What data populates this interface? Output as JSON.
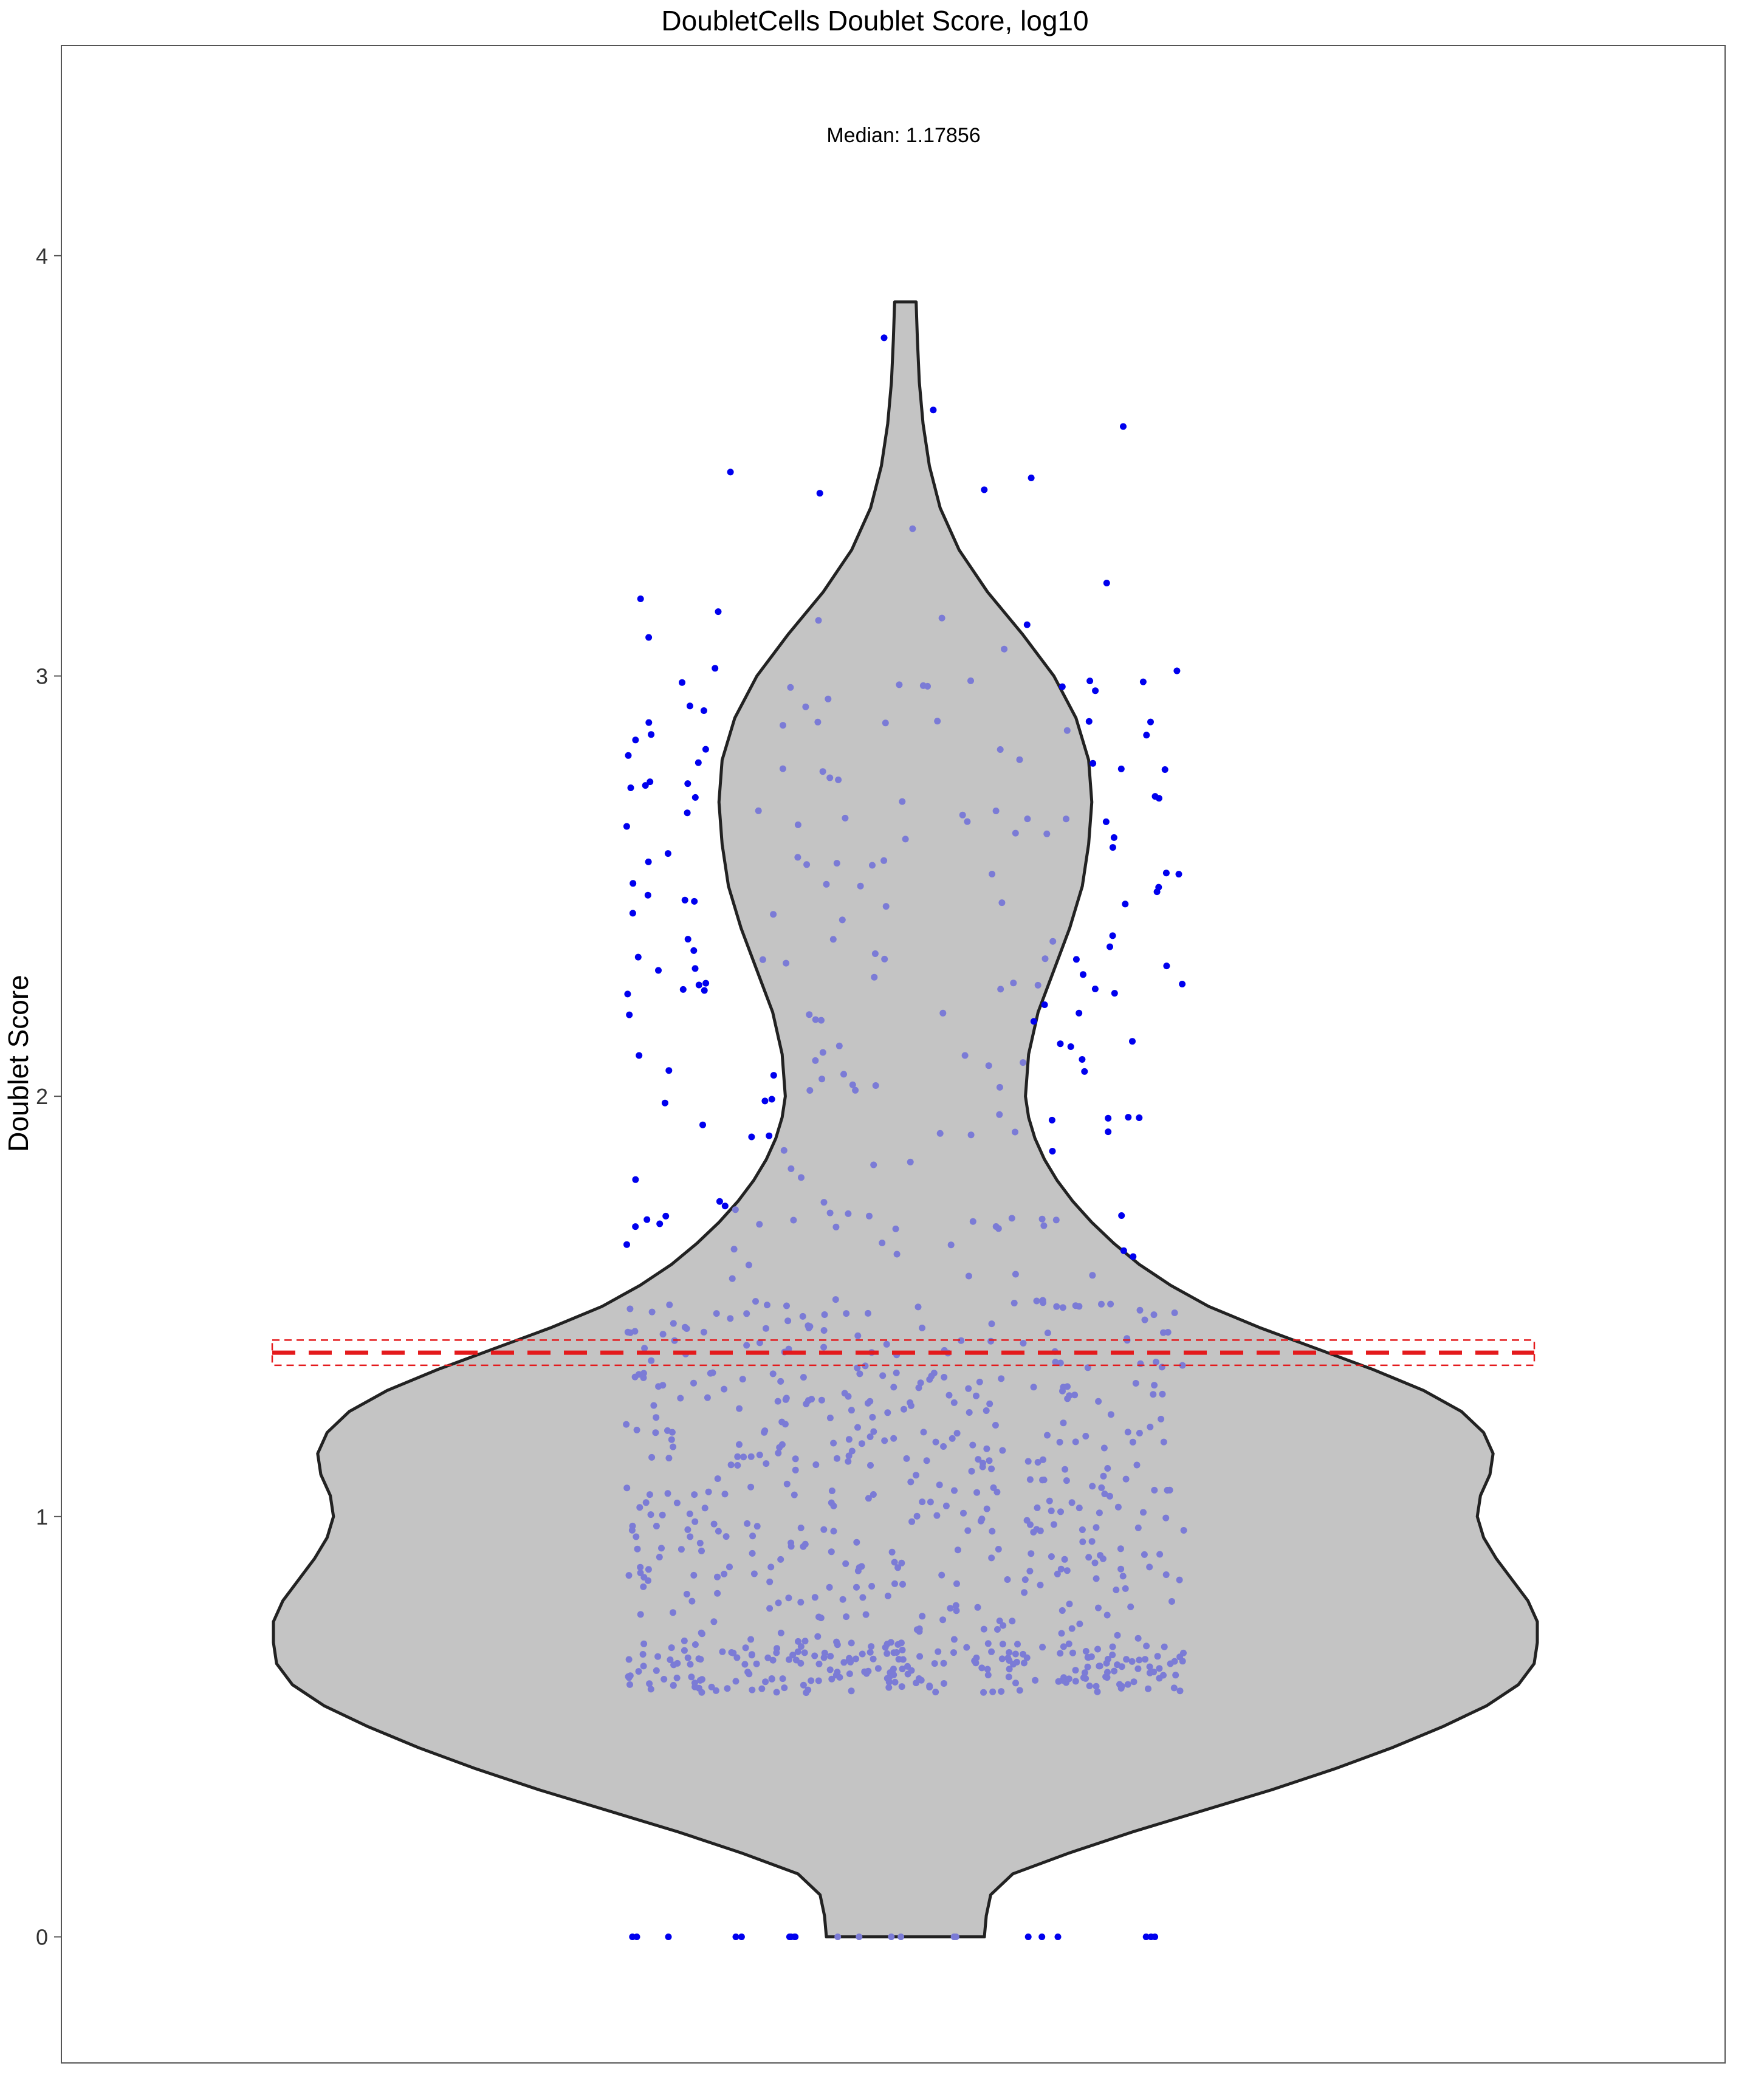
{
  "chart_data": {
    "type": "violin",
    "title": "DoubletCells Doublet Score, log10",
    "annotation": "Median: 1.17856",
    "xlabel": "",
    "ylabel": "Doublet Score",
    "ylim": [
      -0.3,
      4.5
    ],
    "y_ticks": [
      "0",
      "1",
      "2",
      "3",
      "4"
    ],
    "y_tick_values": [
      0,
      1,
      2,
      3,
      4
    ],
    "threshold": {
      "value": 1.39,
      "band": [
        1.36,
        1.42
      ],
      "color": "#e41a1c",
      "style": "dashed"
    },
    "violin": {
      "fill": "#c4c4c4",
      "stroke": "#222222",
      "y_min": 0,
      "y_max": 3.89,
      "profile": [
        [
          0.0,
          0.125
        ],
        [
          0.05,
          0.128
        ],
        [
          0.1,
          0.135
        ],
        [
          0.15,
          0.17
        ],
        [
          0.2,
          0.26
        ],
        [
          0.25,
          0.36
        ],
        [
          0.3,
          0.47
        ],
        [
          0.35,
          0.58
        ],
        [
          0.4,
          0.68
        ],
        [
          0.45,
          0.77
        ],
        [
          0.5,
          0.85
        ],
        [
          0.55,
          0.92
        ],
        [
          0.6,
          0.97
        ],
        [
          0.65,
          0.995
        ],
        [
          0.7,
          1.0
        ],
        [
          0.75,
          1.0
        ],
        [
          0.8,
          0.985
        ],
        [
          0.85,
          0.96
        ],
        [
          0.9,
          0.935
        ],
        [
          0.95,
          0.915
        ],
        [
          1.0,
          0.905
        ],
        [
          1.05,
          0.91
        ],
        [
          1.1,
          0.925
        ],
        [
          1.15,
          0.93
        ],
        [
          1.2,
          0.915
        ],
        [
          1.25,
          0.88
        ],
        [
          1.3,
          0.82
        ],
        [
          1.35,
          0.74
        ],
        [
          1.4,
          0.65
        ],
        [
          1.45,
          0.56
        ],
        [
          1.5,
          0.48
        ],
        [
          1.55,
          0.42
        ],
        [
          1.6,
          0.37
        ],
        [
          1.65,
          0.33
        ],
        [
          1.7,
          0.295
        ],
        [
          1.75,
          0.265
        ],
        [
          1.8,
          0.24
        ],
        [
          1.85,
          0.22
        ],
        [
          1.9,
          0.205
        ],
        [
          1.95,
          0.195
        ],
        [
          2.0,
          0.19
        ],
        [
          2.1,
          0.195
        ],
        [
          2.2,
          0.21
        ],
        [
          2.3,
          0.235
        ],
        [
          2.4,
          0.26
        ],
        [
          2.5,
          0.28
        ],
        [
          2.6,
          0.29
        ],
        [
          2.7,
          0.295
        ],
        [
          2.8,
          0.29
        ],
        [
          2.9,
          0.27
        ],
        [
          3.0,
          0.235
        ],
        [
          3.1,
          0.185
        ],
        [
          3.2,
          0.13
        ],
        [
          3.3,
          0.085
        ],
        [
          3.4,
          0.055
        ],
        [
          3.5,
          0.038
        ],
        [
          3.6,
          0.028
        ],
        [
          3.7,
          0.022
        ],
        [
          3.8,
          0.019
        ],
        [
          3.89,
          0.017
        ]
      ]
    },
    "points": {
      "color_inside": "#7b7bd6",
      "color_outside": "#0000ee",
      "n_total": 900,
      "note_outside": "blue points lie outside the violin outline"
    }
  }
}
